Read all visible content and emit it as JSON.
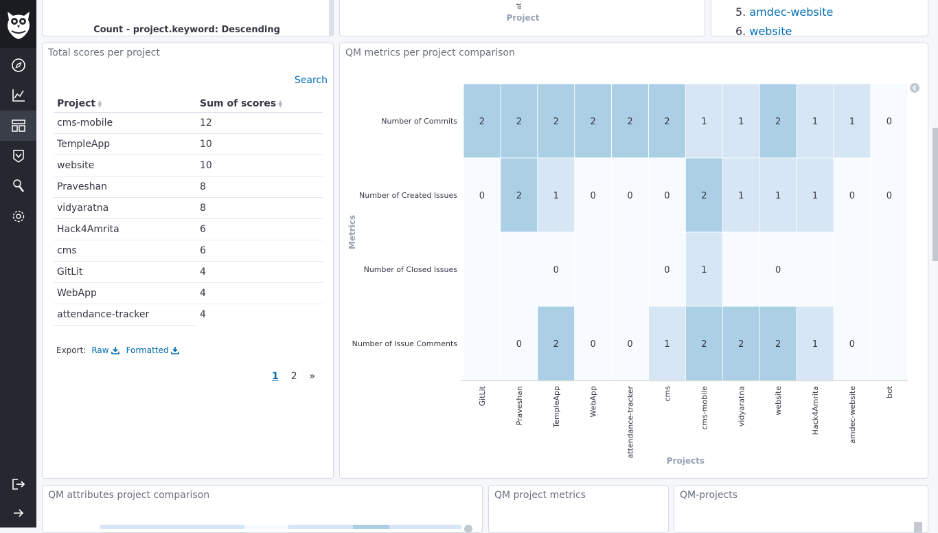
{
  "top_left_panel": {
    "caption": "Count - project.keyword: Descending"
  },
  "top_mid_panel": {
    "axis_label": "Project",
    "clipped_tick": "at"
  },
  "top_right_panel": {
    "items": [
      {
        "num": "5.",
        "label": "amdec-website"
      },
      {
        "num": "6.",
        "label": "website"
      }
    ]
  },
  "scores_panel": {
    "title": "Total scores per project",
    "search_label": "Search",
    "columns": [
      "Project",
      "Sum of scores"
    ],
    "rows": [
      {
        "project": "cms-mobile",
        "score": "12"
      },
      {
        "project": "TempleApp",
        "score": "10"
      },
      {
        "project": "website",
        "score": "10"
      },
      {
        "project": "Praveshan",
        "score": "8"
      },
      {
        "project": "vidyaratna",
        "score": "8"
      },
      {
        "project": "Hack4Amrita",
        "score": "6"
      },
      {
        "project": "cms",
        "score": "6"
      },
      {
        "project": "GitLit",
        "score": "4"
      },
      {
        "project": "WebApp",
        "score": "4"
      },
      {
        "project": "attendance-tracker",
        "score": "4"
      }
    ],
    "export_label": "Export:",
    "raw_label": "Raw",
    "formatted_label": "Formatted",
    "pages": [
      "1",
      "2"
    ],
    "next_label": "»"
  },
  "heatmap_panel": {
    "title": "QM metrics per project comparison"
  },
  "chart_data": {
    "type": "heatmap",
    "xlabel": "Projects",
    "ylabel": "Metrics",
    "x": [
      "GitLit",
      "Praveshan",
      "TempleApp",
      "WebApp",
      "attendance-tracker",
      "cms",
      "cms-mobile",
      "vidyaratna",
      "website",
      "Hack4Amrita",
      "amdec-website",
      "bot"
    ],
    "y": [
      "Number of Commits",
      "Number of Created Issues",
      "Number of Closed Issues",
      "Number of Issue Comments"
    ],
    "values": [
      [
        2,
        2,
        2,
        2,
        2,
        2,
        1,
        1,
        2,
        1,
        1,
        0
      ],
      [
        0,
        2,
        1,
        0,
        0,
        0,
        2,
        1,
        1,
        1,
        0,
        0
      ],
      [
        null,
        null,
        0,
        null,
        null,
        0,
        1,
        null,
        0,
        null,
        null,
        null
      ],
      [
        null,
        0,
        2,
        0,
        0,
        1,
        2,
        2,
        2,
        1,
        0,
        null
      ]
    ],
    "colors": {
      "0": "#f7fbff",
      "1": "#d6e6f4",
      "2": "#abd0e6"
    }
  },
  "bottom_panels": {
    "attributes_title": "QM attributes project comparison",
    "metrics_title": "QM project metrics",
    "projects_title": "QM-projects"
  },
  "nav_icons": [
    "owl-logo-icon",
    "discover-icon",
    "visualize-icon",
    "dashboard-icon",
    "timelion-icon",
    "dev-tools-icon",
    "management-icon",
    "logout-icon",
    "expand-icon"
  ]
}
